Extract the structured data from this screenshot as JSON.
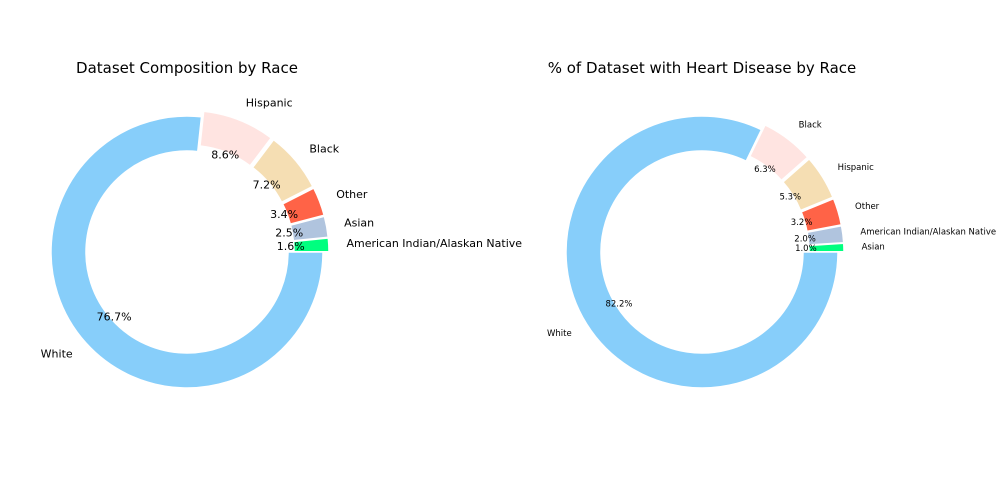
{
  "chart_data": [
    {
      "type": "pie",
      "style": "donut",
      "title": "Dataset Composition by Race",
      "start_angle": "0 degrees (3 o'clock), counterclockwise",
      "slices": [
        {
          "label": "American Indian/Alaskan Native",
          "value": 1.6,
          "pct_label": "1.6%",
          "color": "#00FF7F"
        },
        {
          "label": "Asian",
          "value": 2.5,
          "pct_label": "2.5%",
          "color": "#B0C4DE"
        },
        {
          "label": "Other",
          "value": 3.4,
          "pct_label": "3.4%",
          "color": "#FF6347"
        },
        {
          "label": "Black",
          "value": 7.2,
          "pct_label": "7.2%",
          "color": "#F5DEB3"
        },
        {
          "label": "Hispanic",
          "value": 8.6,
          "pct_label": "8.6%",
          "color": "#FFE4E1"
        },
        {
          "label": "White",
          "value": 76.7,
          "pct_label": "76.7%",
          "color": "#87CEFA"
        }
      ]
    },
    {
      "type": "pie",
      "style": "donut",
      "title": "% of Dataset with Heart Disease by Race",
      "start_angle": "0 degrees (3 o'clock), counterclockwise",
      "slices": [
        {
          "label": "Asian",
          "value": 1.0,
          "pct_label": "1.0%",
          "color": "#00FF7F"
        },
        {
          "label": "American Indian/Alaskan Native",
          "value": 2.0,
          "pct_label": "2.0%",
          "color": "#B0C4DE"
        },
        {
          "label": "Other",
          "value": 3.2,
          "pct_label": "3.2%",
          "color": "#FF6347"
        },
        {
          "label": "Hispanic",
          "value": 5.3,
          "pct_label": "5.3%",
          "color": "#F5DEB3"
        },
        {
          "label": "Black",
          "value": 6.3,
          "pct_label": "6.3%",
          "color": "#FFE4E1"
        },
        {
          "label": "White",
          "value": 82.2,
          "pct_label": "82.2%",
          "color": "#87CEFA"
        }
      ]
    }
  ]
}
